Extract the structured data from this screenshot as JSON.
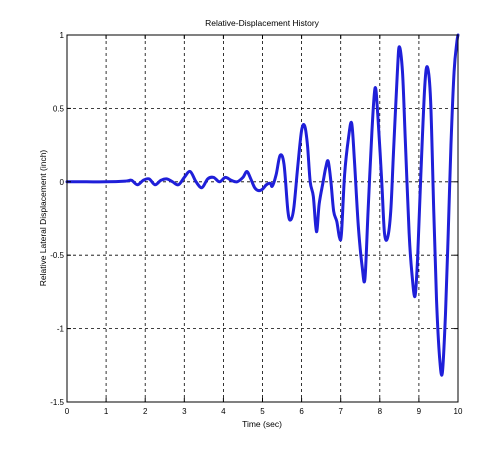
{
  "chart_data": {
    "type": "line",
    "title": "Relative-Displacement History",
    "xlabel": "Time (sec)",
    "ylabel": "Relative Lateral Displacement (inch)",
    "xlim": [
      0,
      10
    ],
    "ylim": [
      -1.5,
      1
    ],
    "xticks": [
      0,
      1,
      2,
      3,
      4,
      5,
      6,
      7,
      8,
      9,
      10
    ],
    "yticks": [
      -1.5,
      -1,
      -0.5,
      0,
      0.5,
      1
    ],
    "xtick_labels": [
      "0",
      "1",
      "2",
      "3",
      "4",
      "5",
      "6",
      "7",
      "8",
      "9",
      "10"
    ],
    "ytick_labels": [
      "-1.5",
      "-1",
      "-0.5",
      "0",
      "0.5",
      "1"
    ],
    "grid": true,
    "line_color": "#1f1fd9",
    "series": [
      {
        "values": [
          [
            0.0,
            0.0
          ],
          [
            0.5,
            0.0
          ],
          [
            1.0,
            0.0
          ],
          [
            1.5,
            0.005
          ],
          [
            1.65,
            0.01
          ],
          [
            1.8,
            -0.02
          ],
          [
            1.95,
            0.01
          ],
          [
            2.1,
            0.02
          ],
          [
            2.25,
            -0.02
          ],
          [
            2.4,
            0.01
          ],
          [
            2.55,
            0.02
          ],
          [
            2.7,
            0.0
          ],
          [
            2.85,
            -0.02
          ],
          [
            3.0,
            0.03
          ],
          [
            3.15,
            0.07
          ],
          [
            3.3,
            0.0
          ],
          [
            3.45,
            -0.04
          ],
          [
            3.6,
            0.02
          ],
          [
            3.75,
            0.03
          ],
          [
            3.9,
            0.0
          ],
          [
            4.05,
            0.03
          ],
          [
            4.2,
            0.01
          ],
          [
            4.35,
            0.0
          ],
          [
            4.5,
            0.03
          ],
          [
            4.6,
            0.07
          ],
          [
            4.7,
            0.02
          ],
          [
            4.8,
            -0.04
          ],
          [
            4.9,
            -0.06
          ],
          [
            5.0,
            -0.05
          ],
          [
            5.1,
            -0.02
          ],
          [
            5.2,
            -0.01
          ],
          [
            5.25,
            -0.03
          ],
          [
            5.35,
            0.05
          ],
          [
            5.45,
            0.18
          ],
          [
            5.55,
            0.12
          ],
          [
            5.65,
            -0.2
          ],
          [
            5.72,
            -0.26
          ],
          [
            5.8,
            -0.18
          ],
          [
            5.9,
            0.1
          ],
          [
            6.0,
            0.35
          ],
          [
            6.08,
            0.38
          ],
          [
            6.15,
            0.25
          ],
          [
            6.22,
            0.0
          ],
          [
            6.3,
            -0.1
          ],
          [
            6.38,
            -0.34
          ],
          [
            6.45,
            -0.15
          ],
          [
            6.55,
            0.0
          ],
          [
            6.62,
            0.1
          ],
          [
            6.68,
            0.14
          ],
          [
            6.75,
            0.0
          ],
          [
            6.82,
            -0.2
          ],
          [
            6.9,
            -0.27
          ],
          [
            6.97,
            -0.38
          ],
          [
            7.02,
            -0.35
          ],
          [
            7.1,
            0.05
          ],
          [
            7.2,
            0.3
          ],
          [
            7.28,
            0.4
          ],
          [
            7.35,
            0.15
          ],
          [
            7.45,
            -0.3
          ],
          [
            7.55,
            -0.58
          ],
          [
            7.62,
            -0.66
          ],
          [
            7.7,
            -0.2
          ],
          [
            7.8,
            0.35
          ],
          [
            7.88,
            0.64
          ],
          [
            7.95,
            0.45
          ],
          [
            8.05,
            0.0
          ],
          [
            8.12,
            -0.35
          ],
          [
            8.2,
            -0.38
          ],
          [
            8.28,
            -0.2
          ],
          [
            8.35,
            0.2
          ],
          [
            8.45,
            0.75
          ],
          [
            8.5,
            0.92
          ],
          [
            8.58,
            0.75
          ],
          [
            8.65,
            0.3
          ],
          [
            8.75,
            -0.35
          ],
          [
            8.82,
            -0.62
          ],
          [
            8.9,
            -0.78
          ],
          [
            8.97,
            -0.5
          ],
          [
            9.05,
            0.05
          ],
          [
            9.15,
            0.65
          ],
          [
            9.22,
            0.78
          ],
          [
            9.3,
            0.55
          ],
          [
            9.38,
            -0.2
          ],
          [
            9.45,
            -0.8
          ],
          [
            9.53,
            -1.2
          ],
          [
            9.6,
            -1.3
          ],
          [
            9.68,
            -0.9
          ],
          [
            9.75,
            -0.35
          ],
          [
            9.82,
            0.25
          ],
          [
            9.9,
            0.75
          ],
          [
            9.97,
            0.95
          ],
          [
            10.0,
            1.0
          ]
        ]
      }
    ]
  }
}
